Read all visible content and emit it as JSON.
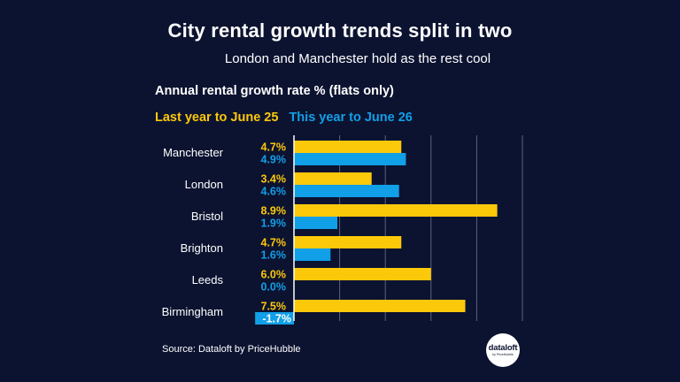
{
  "header": {
    "title": "City rental growth trends split in two",
    "subtitle": "London and Manchester hold as the rest cool"
  },
  "chart_heading": "Annual rental growth rate % (flats only)",
  "footer": {
    "source": "Source: Dataloft by PriceHubble",
    "logo_main": "dataloft",
    "logo_sub": "by PriceHubble"
  },
  "colors": {
    "background": "#0c1330",
    "last_year": "#fcc80a",
    "this_year": "#119fe8",
    "gridline": "#5b6278"
  },
  "chart_data": {
    "type": "bar",
    "orientation": "horizontal",
    "categories": [
      "Manchester",
      "London",
      "Bristol",
      "Brighton",
      "Leeds",
      "Birmingham"
    ],
    "series": [
      {
        "name": "Last year to June 25",
        "values": [
          4.7,
          3.4,
          8.9,
          4.7,
          6.0,
          7.5
        ],
        "labels": [
          "4.7%",
          "3.4%",
          "8.9%",
          "4.7%",
          "6.0%",
          "7.5%"
        ]
      },
      {
        "name": "This year to June 26",
        "values": [
          4.9,
          4.6,
          1.9,
          1.6,
          0.0,
          -1.7
        ],
        "labels": [
          "4.9%",
          "4.6%",
          "1.9%",
          "1.6%",
          "0.0%",
          "-1.7%"
        ]
      }
    ],
    "xlim": [
      -2,
      10
    ],
    "grid": true,
    "legend": "top-left"
  }
}
